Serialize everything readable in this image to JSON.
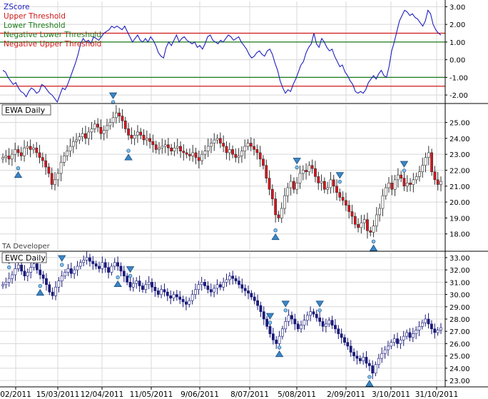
{
  "chart_data": [
    {
      "type": "line",
      "legend": [
        {
          "label": "ZScore",
          "color": "#1f1fbf"
        },
        {
          "label": "Upper Threshold",
          "color": "#d01818"
        },
        {
          "label": "Lower Threshold",
          "color": "#1a7a1a"
        },
        {
          "label": "Negative Lower Threshold",
          "color": "#1a7a1a"
        },
        {
          "label": "Negative Upper Threshold",
          "color": "#d01818"
        }
      ],
      "legend_position": "top-left",
      "ylim": [
        -2.4,
        3.3
      ],
      "yticks": [
        "3.00",
        "2.00",
        "1.00",
        "0.00",
        "-1.00",
        "-2.00"
      ],
      "thresholds": [
        {
          "value": 1.5,
          "color": "#d01818"
        },
        {
          "value": 1.0,
          "color": "#1a7a1a"
        },
        {
          "value": -1.0,
          "color": "#1a7a1a"
        },
        {
          "value": -1.5,
          "color": "#d01818"
        }
      ],
      "series": [
        {
          "values": [
            -0.6,
            -0.7,
            -1.0,
            -1.2,
            -1.4,
            -1.3,
            -1.6,
            -1.8,
            -1.9,
            -2.1,
            -1.8,
            -1.6,
            -1.7,
            -1.9,
            -1.8,
            -1.4,
            -1.5,
            -1.7,
            -1.9,
            -2.0,
            -2.2,
            -2.4,
            -2.0,
            -1.6,
            -1.7,
            -1.4,
            -1.0,
            -0.6,
            -0.2,
            0.3,
            0.9,
            1.2,
            1.0,
            1.1,
            0.9,
            1.3,
            1.2,
            1.1,
            1.3,
            1.5,
            1.6,
            1.7,
            1.9,
            1.8,
            1.9,
            1.8,
            1.7,
            1.9,
            1.6,
            1.3,
            1.0,
            1.2,
            1.4,
            1.1,
            1.0,
            1.2,
            1.0,
            1.3,
            1.1,
            0.8,
            0.4,
            0.2,
            0.1,
            0.7,
            1.0,
            0.8,
            1.1,
            1.4,
            1.0,
            1.2,
            1.3,
            1.1,
            1.0,
            0.9,
            1.0,
            0.7,
            0.8,
            0.6,
            0.9,
            1.3,
            1.4,
            1.1,
            1.0,
            0.9,
            1.1,
            1.0,
            1.2,
            1.4,
            1.3,
            1.1,
            1.2,
            1.3,
            1.0,
            0.8,
            0.6,
            0.3,
            0.1,
            0.2,
            0.4,
            0.5,
            0.3,
            0.2,
            0.5,
            0.6,
            0.3,
            -0.2,
            -0.6,
            -1.2,
            -1.6,
            -1.9,
            -1.7,
            -1.8,
            -1.4,
            -1.1,
            -0.7,
            -0.3,
            -0.1,
            0.4,
            0.7,
            0.9,
            1.5,
            0.9,
            0.7,
            1.2,
            1.0,
            0.7,
            0.5,
            0.6,
            0.2,
            -0.1,
            -0.4,
            -0.3,
            -0.7,
            -0.9,
            -1.2,
            -1.4,
            -1.8,
            -1.9,
            -1.8,
            -1.9,
            -1.7,
            -1.3,
            -1.1,
            -0.9,
            -1.1,
            -0.8,
            -0.6,
            -0.9,
            -1.0,
            -0.4,
            0.5,
            1.0,
            1.6,
            2.2,
            2.5,
            2.8,
            2.7,
            2.5,
            2.6,
            2.4,
            2.3,
            2.1,
            1.9,
            2.2,
            2.8,
            2.6,
            2.0,
            1.7,
            1.5,
            1.4
          ]
        }
      ]
    },
    {
      "type": "candlestick",
      "title": "EWA Daily",
      "ylim": [
        17.0,
        26.1
      ],
      "yticks": [
        "25.00",
        "24.00",
        "23.00",
        "22.00",
        "21.00",
        "20.00",
        "19.00",
        "18.00"
      ],
      "colors": {
        "up": "#ffffff",
        "down": "#e0101a",
        "outline": "#333333"
      },
      "close": [
        22.8,
        22.9,
        22.7,
        23.0,
        23.3,
        23.1,
        22.9,
        23.4,
        23.5,
        23.3,
        23.4,
        23.1,
        22.8,
        22.6,
        22.2,
        21.8,
        21.1,
        21.4,
        21.8,
        22.5,
        22.9,
        23.2,
        23.5,
        23.8,
        23.9,
        24.1,
        24.3,
        24.0,
        24.4,
        24.6,
        24.9,
        24.7,
        24.3,
        24.5,
        24.8,
        25.0,
        25.3,
        25.6,
        25.4,
        25.1,
        24.6,
        24.2,
        24.0,
        24.2,
        24.4,
        24.2,
        23.9,
        24.0,
        23.8,
        23.6,
        23.3,
        23.4,
        23.5,
        23.6,
        23.4,
        23.2,
        23.4,
        23.5,
        23.2,
        23.1,
        23.0,
        22.9,
        23.1,
        22.8,
        22.6,
        23.0,
        23.2,
        23.5,
        23.7,
        23.9,
        24.0,
        23.7,
        23.5,
        23.1,
        23.3,
        23.0,
        22.8,
        22.9,
        23.2,
        23.5,
        23.7,
        23.5,
        23.3,
        23.1,
        22.7,
        22.3,
        21.5,
        20.8,
        20.2,
        19.2,
        19.0,
        19.6,
        20.4,
        20.9,
        21.3,
        20.8,
        21.2,
        21.8,
        22.0,
        21.9,
        22.3,
        22.1,
        21.6,
        21.2,
        21.3,
        20.8,
        20.9,
        21.4,
        21.0,
        20.6,
        20.3,
        20.1,
        19.8,
        19.4,
        19.1,
        18.6,
        18.4,
        18.7,
        18.9,
        18.2,
        18.1,
        18.5,
        19.2,
        19.6,
        20.4,
        20.9,
        21.2,
        20.8,
        21.4,
        21.7,
        21.5,
        21.0,
        21.2,
        21.1,
        21.4,
        21.6,
        21.9,
        22.3,
        22.8,
        23.1,
        21.9,
        21.4,
        21.1,
        21.3
      ],
      "arrows": [
        {
          "index": 5,
          "dir": "up"
        },
        {
          "index": 36,
          "dir": "down"
        },
        {
          "index": 41,
          "dir": "up"
        },
        {
          "index": 89,
          "dir": "up"
        },
        {
          "index": 96,
          "dir": "down"
        },
        {
          "index": 110,
          "dir": "down"
        },
        {
          "index": 121,
          "dir": "up"
        },
        {
          "index": 131,
          "dir": "down"
        }
      ]
    },
    {
      "type": "candlestick",
      "title": "EWC Daily",
      "ylim": [
        22.6,
        33.4
      ],
      "yticks": [
        "33.00",
        "32.00",
        "31.00",
        "30.00",
        "29.00",
        "28.00",
        "27.00",
        "26.00",
        "25.00",
        "24.00",
        "23.00"
      ],
      "colors": {
        "up": "#ffffff",
        "down": "#1a1a7a",
        "outline": "#1a1a7a"
      },
      "close": [
        30.8,
        31.0,
        31.3,
        31.6,
        32.1,
        32.4,
        31.9,
        31.5,
        31.8,
        32.2,
        32.5,
        32.0,
        31.6,
        31.3,
        30.8,
        30.2,
        29.9,
        30.6,
        31.1,
        31.5,
        31.8,
        32.1,
        31.7,
        32.0,
        32.3,
        32.6,
        32.8,
        33.0,
        32.7,
        32.5,
        32.3,
        32.1,
        32.6,
        32.2,
        31.8,
        32.3,
        32.6,
        32.3,
        31.9,
        31.5,
        31.0,
        30.6,
        30.9,
        31.1,
        30.7,
        30.4,
        30.8,
        31.0,
        30.6,
        30.3,
        30.0,
        30.4,
        30.2,
        29.9,
        29.7,
        30.0,
        29.8,
        29.6,
        29.4,
        29.2,
        29.5,
        30.0,
        30.4,
        30.8,
        31.0,
        30.7,
        30.4,
        30.2,
        30.5,
        30.8,
        30.6,
        31.0,
        31.2,
        31.5,
        31.3,
        31.1,
        30.8,
        30.5,
        30.3,
        30.1,
        29.8,
        29.5,
        29.1,
        28.6,
        28.0,
        27.4,
        26.8,
        26.3,
        26.0,
        26.6,
        27.2,
        27.8,
        28.3,
        28.0,
        27.6,
        27.2,
        27.5,
        27.9,
        28.3,
        28.6,
        28.4,
        28.1,
        27.8,
        27.4,
        27.6,
        27.9,
        27.5,
        27.2,
        26.8,
        26.5,
        26.1,
        25.8,
        25.3,
        25.0,
        24.8,
        24.6,
        24.9,
        24.4,
        24.2,
        23.6,
        24.3,
        24.8,
        25.2,
        25.5,
        25.8,
        26.1,
        26.4,
        26.0,
        26.3,
        26.6,
        26.9,
        26.5,
        26.8,
        27.1,
        27.4,
        27.7,
        28.0,
        27.6,
        27.2,
        26.9,
        27.1,
        27.3
      ],
      "arrows": [
        {
          "index": 2,
          "dir": "down"
        },
        {
          "index": 12,
          "dir": "up"
        },
        {
          "index": 19,
          "dir": "down"
        },
        {
          "index": 37,
          "dir": "up"
        },
        {
          "index": 41,
          "dir": "down"
        },
        {
          "index": 86,
          "dir": "down"
        },
        {
          "index": 89,
          "dir": "up"
        },
        {
          "index": 91,
          "dir": "down"
        },
        {
          "index": 102,
          "dir": "down"
        },
        {
          "index": 118,
          "dir": "up"
        }
      ]
    }
  ],
  "x_axis": {
    "ticks": [
      "02/2011",
      "15/03/2011",
      "12/04/2011",
      "11/05/2011",
      "9/06/2011",
      "8/07/2011",
      "5/08/2011",
      "2/09/2011",
      "3/10/2011",
      "31/10/2011"
    ]
  },
  "watermark": "TA Developer"
}
